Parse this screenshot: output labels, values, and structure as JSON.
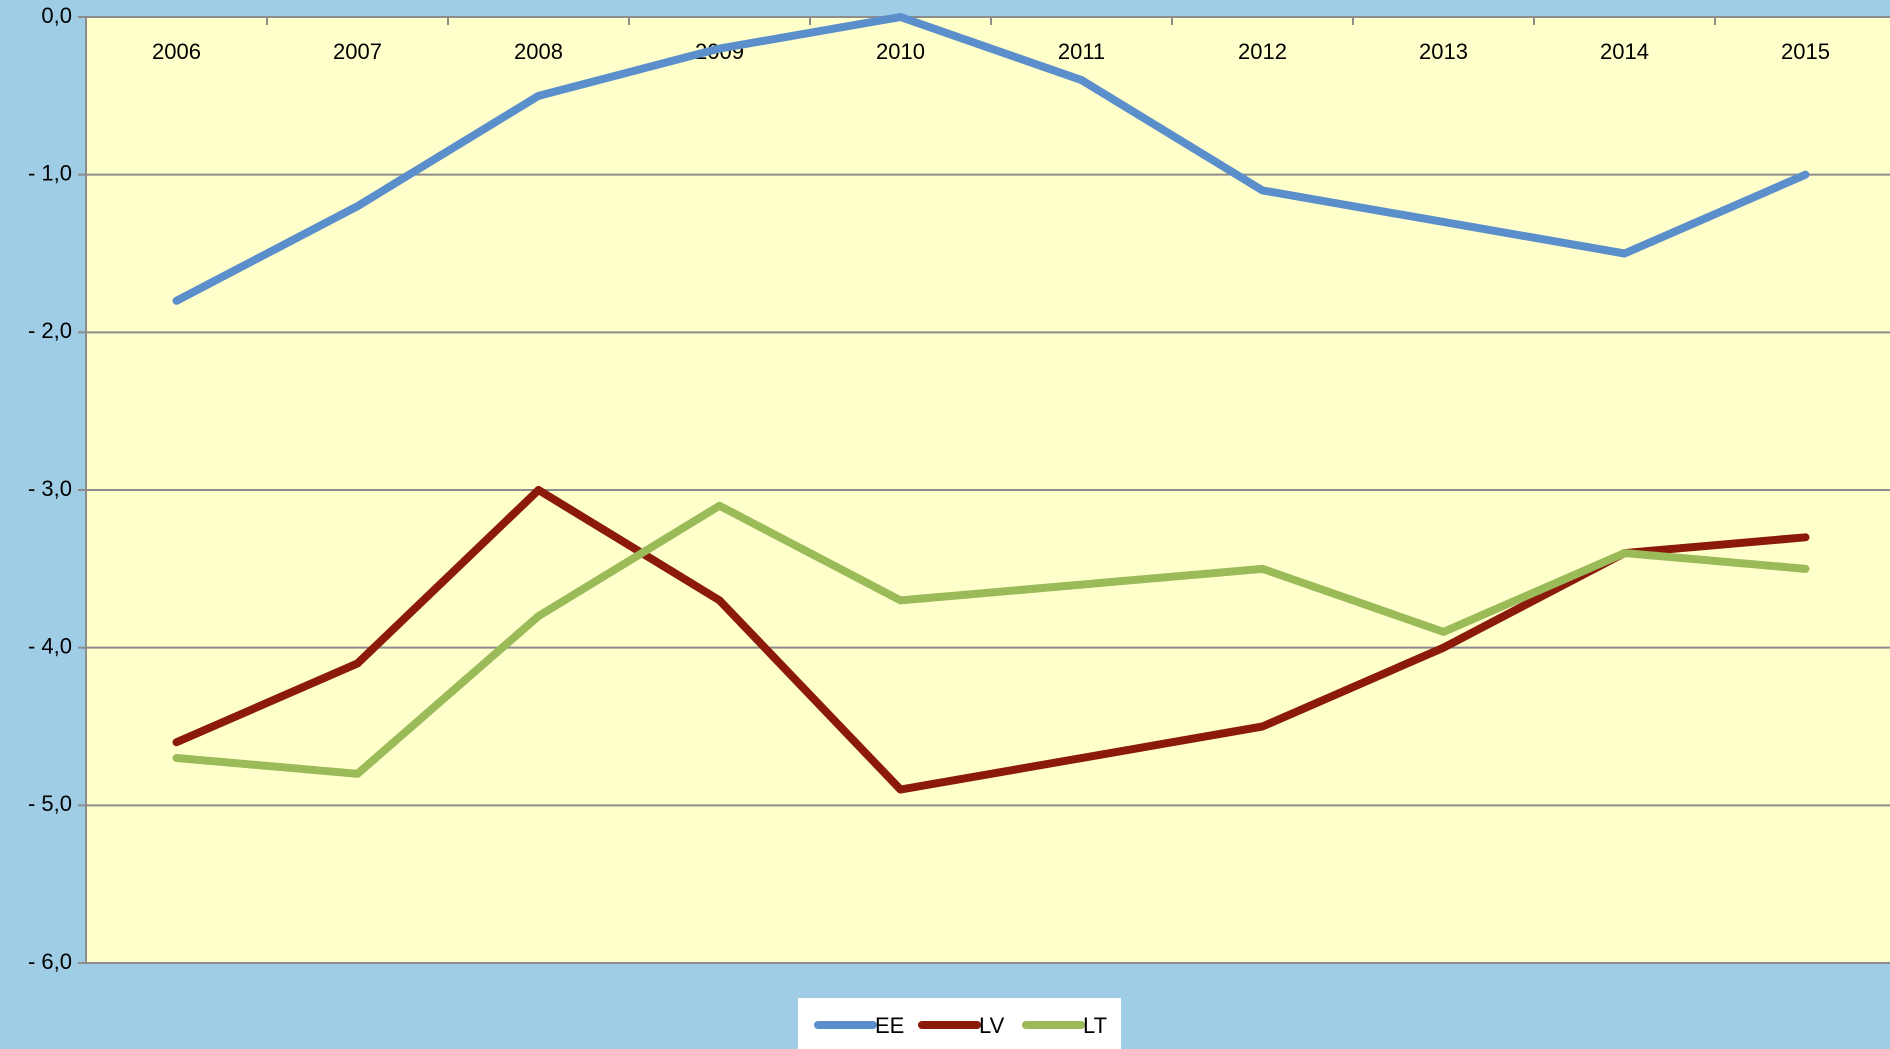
{
  "chart_data": {
    "type": "line",
    "categories": [
      "2006",
      "2007",
      "2008",
      "2009",
      "2010",
      "2011",
      "2012",
      "2013",
      "2014",
      "2015"
    ],
    "series": [
      {
        "name": "EE",
        "color": "#5b8fcb",
        "values": [
          -1.8,
          -1.2,
          -0.5,
          -0.2,
          0.0,
          -0.4,
          -1.1,
          -1.3,
          -1.5,
          -1.0
        ]
      },
      {
        "name": "LV",
        "color": "#8b1a0b",
        "values": [
          -4.6,
          -4.1,
          -3.0,
          -3.7,
          -4.9,
          -4.7,
          -4.5,
          -4.0,
          -3.4,
          -3.3
        ]
      },
      {
        "name": "LT",
        "color": "#9bbb59",
        "values": [
          -4.7,
          -4.8,
          -3.8,
          -3.1,
          -3.7,
          -3.6,
          -3.5,
          -3.9,
          -3.4,
          -3.5
        ]
      }
    ],
    "ylim": [
      -6,
      0
    ],
    "yticks": [
      {
        "value": 0,
        "label": "0,0"
      },
      {
        "value": -1,
        "label": "- 1,0"
      },
      {
        "value": -2,
        "label": "- 2,0"
      },
      {
        "value": -3,
        "label": "- 3,0"
      },
      {
        "value": -4,
        "label": "- 4,0"
      },
      {
        "value": -5,
        "label": "- 5,0"
      },
      {
        "value": -6,
        "label": "- 6,0"
      }
    ],
    "grid": true,
    "legend": "bottom"
  }
}
